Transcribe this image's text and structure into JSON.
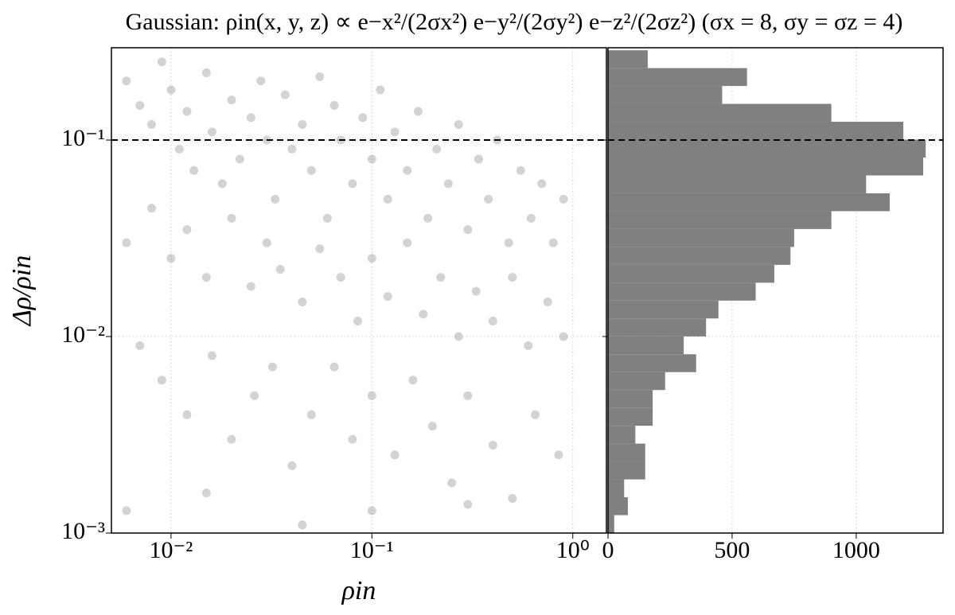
{
  "chart_data": [
    {
      "type": "scatter",
      "title": "Gaussian: ρin(x, y, z) ∝ e−x²/(2σx²) e−y²/(2σy²) e−z²/(2σz²) (σx = 8, σy = σz = 4)",
      "xlabel": "ρin",
      "ylabel": "Δρ/ρin",
      "xscale": "log",
      "yscale": "log",
      "grid": true,
      "color": "#808080",
      "hline": 0.1,
      "xlim": [
        0.00505,
        1.47
      ],
      "ylim": [
        0.001,
        0.295
      ],
      "xticks": [
        {
          "value": 0.01,
          "label": "10⁻²"
        },
        {
          "value": 0.1,
          "label": "10⁻¹"
        },
        {
          "value": 1,
          "label": "10⁰"
        }
      ],
      "yticks": [
        {
          "value": 0.001,
          "label": "10⁻³"
        },
        {
          "value": 0.01,
          "label": "10⁻²"
        },
        {
          "value": 0.1,
          "label": "10⁻¹"
        }
      ],
      "x": [
        0.006,
        0.007,
        0.008,
        0.009,
        0.01,
        0.011,
        0.012,
        0.013,
        0.015,
        0.016,
        0.018,
        0.02,
        0.022,
        0.025,
        0.028,
        0.03,
        0.033,
        0.037,
        0.04,
        0.045,
        0.05,
        0.055,
        0.06,
        0.065,
        0.07,
        0.08,
        0.09,
        0.1,
        0.11,
        0.12,
        0.13,
        0.15,
        0.17,
        0.19,
        0.21,
        0.24,
        0.27,
        0.3,
        0.34,
        0.38,
        0.42,
        0.48,
        0.55,
        0.62,
        0.7,
        0.8,
        0.9,
        0.006,
        0.008,
        0.01,
        0.012,
        0.015,
        0.02,
        0.025,
        0.03,
        0.035,
        0.045,
        0.055,
        0.07,
        0.085,
        0.1,
        0.12,
        0.15,
        0.18,
        0.22,
        0.27,
        0.33,
        0.4,
        0.5,
        0.6,
        0.75,
        0.9,
        0.007,
        0.009,
        0.012,
        0.016,
        0.02,
        0.026,
        0.032,
        0.04,
        0.05,
        0.065,
        0.08,
        0.1,
        0.13,
        0.16,
        0.2,
        0.25,
        0.3,
        0.4,
        0.5,
        0.65,
        0.85,
        0.006,
        0.015,
        0.045,
        0.1,
        0.3
      ],
      "values": [
        0.2,
        0.15,
        0.12,
        0.25,
        0.18,
        0.09,
        0.14,
        0.07,
        0.22,
        0.11,
        0.06,
        0.16,
        0.08,
        0.13,
        0.2,
        0.1,
        0.05,
        0.17,
        0.09,
        0.12,
        0.07,
        0.21,
        0.04,
        0.15,
        0.1,
        0.06,
        0.13,
        0.08,
        0.18,
        0.05,
        0.11,
        0.07,
        0.14,
        0.04,
        0.09,
        0.06,
        0.12,
        0.035,
        0.08,
        0.05,
        0.1,
        0.03,
        0.07,
        0.04,
        0.06,
        0.03,
        0.05,
        0.03,
        0.045,
        0.025,
        0.035,
        0.02,
        0.04,
        0.018,
        0.03,
        0.022,
        0.015,
        0.028,
        0.02,
        0.012,
        0.025,
        0.016,
        0.03,
        0.013,
        0.02,
        0.01,
        0.017,
        0.012,
        0.02,
        0.009,
        0.015,
        0.01,
        0.009,
        0.006,
        0.004,
        0.008,
        0.003,
        0.005,
        0.007,
        0.0022,
        0.004,
        0.007,
        0.003,
        0.005,
        0.0025,
        0.006,
        0.0035,
        0.0018,
        0.005,
        0.0028,
        0.0015,
        0.004,
        0.0025,
        0.0013,
        0.0016,
        0.0011,
        0.0013,
        0.0014
      ]
    },
    {
      "type": "histogram",
      "orientation": "horizontal",
      "yscale": "log",
      "grid": true,
      "color": "#808080",
      "hline": 0.1,
      "xlim": [
        0,
        1350
      ],
      "ylim": [
        0.001,
        0.295
      ],
      "xticks": [
        0,
        500,
        1000
      ],
      "bins": [
        0.001,
        0.001233,
        0.001521,
        0.001875,
        0.002312,
        0.002851,
        0.003516,
        0.004335,
        0.005346,
        0.006592,
        0.008128,
        0.01002,
        0.01236,
        0.01524,
        0.01879,
        0.02317,
        0.02858,
        0.03524,
        0.04345,
        0.05358,
        0.06607,
        0.08147,
        0.1005,
        0.1239,
        0.1528,
        0.1884,
        0.2323,
        0.2864
      ],
      "values": [
        25,
        80,
        65,
        150,
        150,
        110,
        180,
        180,
        230,
        355,
        305,
        395,
        445,
        595,
        670,
        735,
        750,
        900,
        1135,
        1040,
        1270,
        1280,
        1190,
        900,
        460,
        560,
        160
      ]
    }
  ]
}
